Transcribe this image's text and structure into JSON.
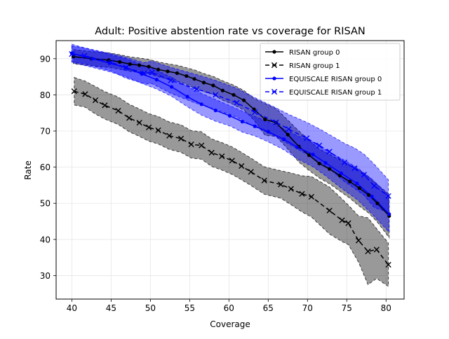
{
  "chart_data": {
    "type": "line",
    "title": "Adult: Positive abstention rate vs coverage for RISAN",
    "xlabel": "Coverage",
    "ylabel": "Rate",
    "xlim": [
      38.0,
      82.3
    ],
    "ylim": [
      23.5,
      95.0
    ],
    "xticks": [
      40,
      45,
      50,
      55,
      60,
      65,
      70,
      75,
      80
    ],
    "yticks": [
      30,
      40,
      50,
      60,
      70,
      80,
      90
    ],
    "grid": true,
    "legend_position": "top-right",
    "series": [
      {
        "name": "RISAN group 0",
        "color": "#000000",
        "marker": "dot",
        "linestyle": "solid",
        "x": [
          40.2,
          42.5,
          44.7,
          46.1,
          47.4,
          48.6,
          49.8,
          51.0,
          52.2,
          53.4,
          54.6,
          55.6,
          56.8,
          58.0,
          59.2,
          60.6,
          61.9,
          63.2,
          64.6,
          66.0,
          67.5,
          68.9,
          70.2,
          71.5,
          72.8,
          74.1,
          75.4,
          76.6,
          77.8,
          78.9,
          80.4
        ],
        "y": [
          90.6,
          90.0,
          89.6,
          89.1,
          88.5,
          88.2,
          87.8,
          87.0,
          86.5,
          86.0,
          85.2,
          84.4,
          83.4,
          82.6,
          81.2,
          80.0,
          78.5,
          76.0,
          73.2,
          72.3,
          69.0,
          65.7,
          63.3,
          61.0,
          59.5,
          57.7,
          56.0,
          54.2,
          52.3,
          50.0,
          46.5
        ],
        "band_upper": [
          92.5,
          92.0,
          91.6,
          91.1,
          90.5,
          90.2,
          89.8,
          89.1,
          88.6,
          88.2,
          87.5,
          86.9,
          85.9,
          85.1,
          83.9,
          82.7,
          81.2,
          79.0,
          77.6,
          76.2,
          73.0,
          70.0,
          67.5,
          65.0,
          63.6,
          62.0,
          60.6,
          59.2,
          57.3,
          55.2,
          52.5
        ],
        "band_lower": [
          88.6,
          88.0,
          87.6,
          87.1,
          86.5,
          86.2,
          85.8,
          85.0,
          84.4,
          83.8,
          82.9,
          81.9,
          80.9,
          80.1,
          78.5,
          77.3,
          75.8,
          73.0,
          68.8,
          68.5,
          65.0,
          61.4,
          59.1,
          57.0,
          55.4,
          53.4,
          51.4,
          49.2,
          47.3,
          44.8,
          40.5
        ]
      },
      {
        "name": "RISAN group 1",
        "color": "#000000",
        "marker": "x",
        "linestyle": "dashed",
        "x": [
          40.3,
          41.7,
          43.0,
          44.2,
          45.9,
          47.3,
          48.6,
          49.8,
          51.0,
          52.4,
          53.9,
          55.2,
          56.5,
          57.8,
          59.1,
          60.4,
          61.6,
          62.8,
          64.5,
          66.6,
          67.9,
          69.3,
          70.5,
          72.8,
          74.4,
          75.2,
          76.5,
          77.7,
          78.8,
          80.3
        ],
        "y": [
          81.0,
          80.2,
          78.5,
          77.1,
          75.6,
          73.6,
          72.3,
          71.0,
          70.2,
          68.7,
          67.9,
          66.3,
          66.0,
          64.0,
          63.0,
          61.8,
          60.3,
          58.7,
          56.3,
          55.2,
          54.0,
          52.6,
          51.8,
          48.0,
          45.3,
          44.5,
          39.7,
          36.7,
          37.2,
          33.0
        ],
        "band_upper": [
          84.8,
          83.8,
          82.3,
          80.9,
          79.4,
          77.4,
          76.1,
          74.8,
          74.0,
          72.5,
          71.7,
          70.1,
          69.8,
          67.8,
          66.8,
          65.6,
          64.1,
          62.5,
          60.1,
          59.0,
          58.4,
          57.6,
          57.4,
          54.5,
          51.2,
          49.5,
          46.5,
          46.0,
          43.0,
          39.0
        ],
        "band_lower": [
          77.2,
          76.6,
          74.7,
          73.3,
          71.8,
          69.8,
          68.5,
          67.2,
          66.4,
          64.9,
          64.1,
          62.5,
          62.2,
          60.2,
          59.2,
          58.0,
          56.5,
          54.9,
          52.5,
          51.4,
          49.6,
          47.6,
          46.2,
          41.5,
          39.4,
          38.6,
          33.7,
          27.5,
          29.2,
          27.0
        ]
      },
      {
        "name": "EQUISCALE RISAN group 0",
        "color": "#0000ff",
        "marker": "dot",
        "linestyle": "solid",
        "x": [
          40.0,
          42.6,
          44.8,
          46.9,
          48.9,
          50.8,
          52.7,
          54.7,
          56.5,
          58.3,
          60.1,
          61.7,
          63.3,
          65.0,
          67.0,
          68.7,
          70.7,
          72.3,
          74.3,
          76.3,
          78.2,
          80.4
        ],
        "y": [
          91.5,
          90.0,
          88.8,
          87.5,
          85.8,
          84.2,
          82.2,
          79.5,
          77.4,
          75.7,
          74.2,
          72.6,
          71.3,
          69.8,
          67.7,
          65.5,
          63.5,
          61.2,
          58.3,
          55.5,
          51.9,
          47.0
        ],
        "band_upper": [
          94.0,
          92.4,
          91.2,
          90.0,
          88.4,
          86.8,
          84.8,
          82.3,
          80.4,
          78.7,
          77.0,
          75.5,
          74.0,
          72.6,
          70.6,
          68.7,
          66.9,
          64.8,
          62.4,
          59.9,
          56.7,
          52.0
        ],
        "band_lower": [
          89.0,
          87.6,
          86.4,
          85.0,
          83.2,
          81.6,
          79.6,
          76.7,
          74.4,
          72.7,
          71.4,
          69.7,
          68.6,
          67.0,
          64.8,
          62.3,
          60.1,
          57.6,
          54.2,
          51.1,
          47.1,
          42.0
        ]
      },
      {
        "name": "EQUISCALE RISAN group 1",
        "color": "#0000ff",
        "marker": "x",
        "linestyle": "dashed",
        "x": [
          40.0,
          41.6,
          45.0,
          46.9,
          49.2,
          50.2,
          52.6,
          55.9,
          58.3,
          61.0,
          63.3,
          66.0,
          67.6,
          69.9,
          71.5,
          72.8,
          74.7,
          76.0,
          77.2,
          78.5,
          80.3
        ],
        "y": [
          91.3,
          90.8,
          89.0,
          87.5,
          86.0,
          86.2,
          84.0,
          81.6,
          80.0,
          77.8,
          75.2,
          72.4,
          70.5,
          68.0,
          66.0,
          64.3,
          61.3,
          59.7,
          57.9,
          54.8,
          52.0
        ],
        "band_upper": [
          93.5,
          93.0,
          91.4,
          90.4,
          88.9,
          89.3,
          87.6,
          85.6,
          84.0,
          81.8,
          79.2,
          76.4,
          74.6,
          72.4,
          70.6,
          69.0,
          66.6,
          65.3,
          63.6,
          60.8,
          56.5
        ],
        "band_lower": [
          89.1,
          88.6,
          86.6,
          84.6,
          83.1,
          83.1,
          80.4,
          77.6,
          76.0,
          73.8,
          71.2,
          68.4,
          66.4,
          63.6,
          61.4,
          59.6,
          56.0,
          54.1,
          52.2,
          48.8,
          47.5
        ]
      }
    ]
  }
}
